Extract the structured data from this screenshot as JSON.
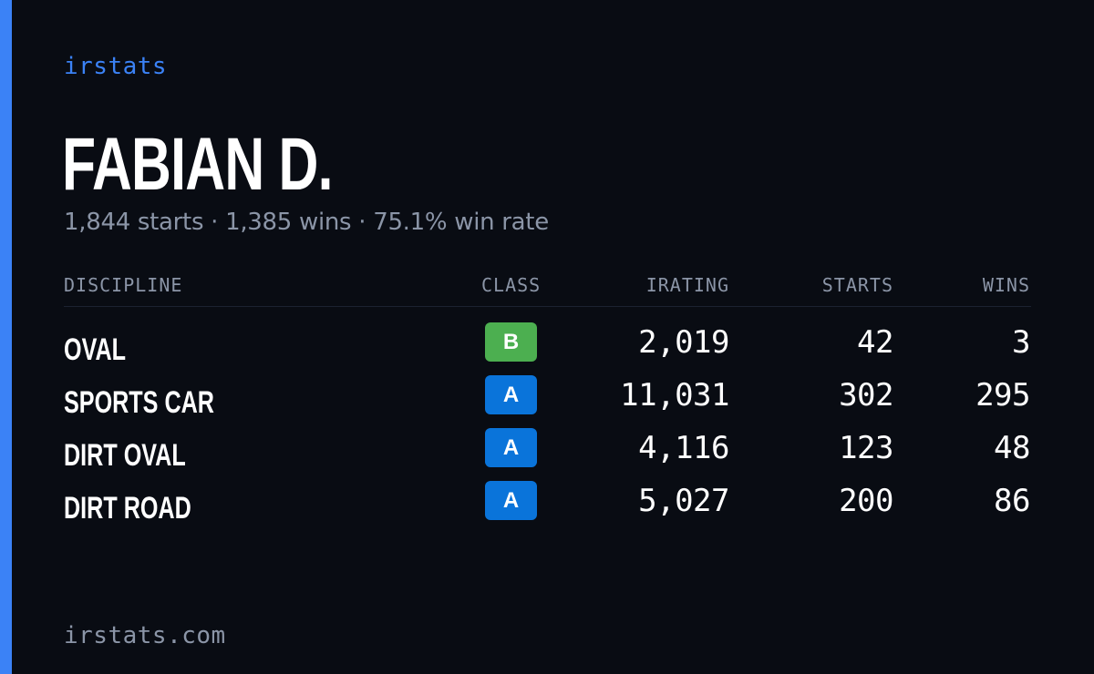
{
  "brand": "irstats",
  "driver": {
    "name": "FABIAN D.",
    "summary": "1,844 starts · 1,385 wins · 75.1% win rate"
  },
  "table": {
    "headers": {
      "discipline": "DISCIPLINE",
      "class": "CLASS",
      "irating": "IRATING",
      "starts": "STARTS",
      "wins": "WINS"
    },
    "rows": [
      {
        "discipline": "OVAL",
        "class": "B",
        "class_color": "#4caf50",
        "irating": "2,019",
        "starts": "42",
        "wins": "3"
      },
      {
        "discipline": "SPORTS CAR",
        "class": "A",
        "class_color": "#0a74da",
        "irating": "11,031",
        "starts": "302",
        "wins": "295"
      },
      {
        "discipline": "DIRT OVAL",
        "class": "A",
        "class_color": "#0a74da",
        "irating": "4,116",
        "starts": "123",
        "wins": "48"
      },
      {
        "discipline": "DIRT ROAD",
        "class": "A",
        "class_color": "#0a74da",
        "irating": "5,027",
        "starts": "200",
        "wins": "86"
      }
    ]
  },
  "footer": {
    "url": "irstats.com"
  },
  "colors": {
    "background": "#090c13",
    "accent": "#3b82f6",
    "muted_text": "#8b95a7"
  }
}
